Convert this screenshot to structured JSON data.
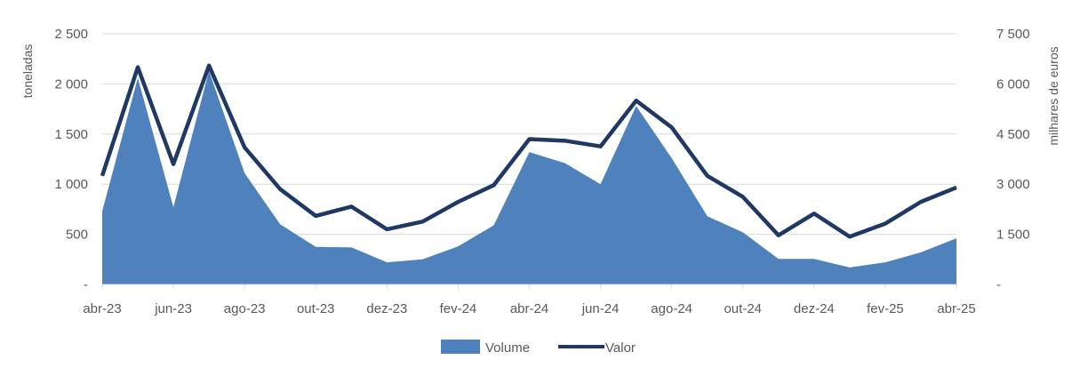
{
  "chart_data": {
    "type": "area",
    "x": [
      "abr-23",
      "mai-23",
      "jun-23",
      "jul-23",
      "ago-23",
      "set-23",
      "out-23",
      "nov-23",
      "dez-23",
      "jan-24",
      "fev-24",
      "mar-24",
      "abr-24",
      "mai-24",
      "jun-24",
      "jul-24",
      "ago-24",
      "set-24",
      "out-24",
      "nov-24",
      "dez-24",
      "jan-25",
      "fev-25",
      "mar-25",
      "abr-25"
    ],
    "x_tick_labels": [
      "abr-23",
      "jun-23",
      "ago-23",
      "out-23",
      "dez-23",
      "fev-24",
      "abr-24",
      "jun-24",
      "ago-24",
      "out-24",
      "dez-24",
      "fev-25",
      "abr-25"
    ],
    "series": [
      {
        "name": "Volume",
        "type": "area",
        "axis": "left",
        "color": "#4f81bd",
        "values": [
          730,
          2060,
          770,
          2130,
          1110,
          600,
          375,
          370,
          220,
          250,
          380,
          590,
          1320,
          1210,
          1000,
          1780,
          1260,
          680,
          520,
          255,
          255,
          170,
          220,
          320,
          460
        ]
      },
      {
        "name": "Valor",
        "type": "line",
        "axis": "right",
        "color": "#1f3864",
        "values": [
          3250,
          6500,
          3600,
          6550,
          4100,
          2850,
          2050,
          2330,
          1650,
          1880,
          2470,
          2970,
          4350,
          4300,
          4130,
          5500,
          4700,
          3250,
          2620,
          1470,
          2120,
          1430,
          1820,
          2470,
          2900
        ]
      }
    ],
    "left_axis": {
      "label": "toneladas",
      "ylim": [
        0,
        2500
      ],
      "ticks": [
        0,
        500,
        1000,
        1500,
        2000,
        2500
      ],
      "tick_labels": [
        "-",
        "500",
        "1 000",
        "1 500",
        "2 000",
        "2 500"
      ]
    },
    "right_axis": {
      "label": "milhares de euros",
      "ylim": [
        0,
        7500
      ],
      "ticks": [
        0,
        1500,
        3000,
        4500,
        6000,
        7500
      ],
      "tick_labels": [
        "-",
        "1 500",
        "3 000",
        "4 500",
        "6 000",
        "7 500"
      ]
    },
    "grid": true,
    "legend_position": "bottom"
  }
}
